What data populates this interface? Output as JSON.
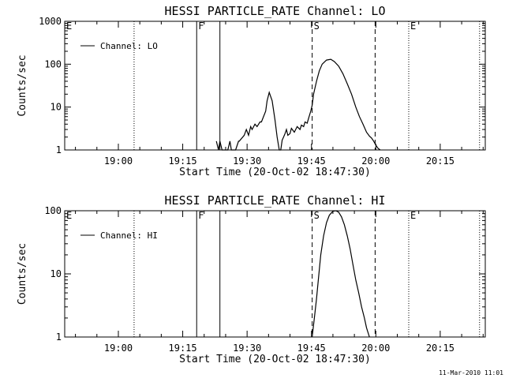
{
  "chart_data": [
    {
      "type": "line",
      "title": "HESSI PARTICLE_RATE Channel: LO",
      "xlabel": "Start Time (20-Oct-02 18:47:30)",
      "ylabel": "Counts/sec",
      "yscale": "log",
      "ylim": [
        1,
        1000
      ],
      "xlim_minutes_after_start": [
        0,
        98
      ],
      "x_tick_labels": [
        "19:00",
        "19:15",
        "19:30",
        "19:45",
        "20:00",
        "20:15"
      ],
      "y_tick_labels": [
        "1",
        "10",
        "100",
        "1000"
      ],
      "legend": "top-left",
      "markers": [
        {
          "label": "E",
          "time": "18:47:30",
          "style": "dotted"
        },
        {
          "label": "",
          "time": "19:03:40",
          "style": "dotted"
        },
        {
          "label": "F",
          "time": "19:18:15",
          "style": "solid"
        },
        {
          "label": "",
          "time": "19:23:40",
          "style": "solid"
        },
        {
          "label": "S",
          "time": "19:45:10",
          "style": "dashed"
        },
        {
          "label": "",
          "time": "19:59:50",
          "style": "dashed"
        },
        {
          "label": "E",
          "time": "20:07:40",
          "style": "dotted"
        },
        {
          "label": "",
          "time": "20:24:10",
          "style": "dotted"
        }
      ],
      "series": [
        {
          "name": "Channel: LO",
          "x": [
            "19:22:50",
            "19:23:20",
            "19:23:40",
            "19:24:10",
            "19:25:30",
            "19:26:00",
            "19:26:20",
            "19:27:20",
            "19:28:00",
            "19:28:10",
            "19:29:20",
            "19:29:50",
            "19:30:20",
            "19:30:50",
            "19:31:10",
            "19:31:50",
            "19:32:20",
            "19:33:00",
            "19:33:20",
            "19:34:20",
            "19:34:40",
            "19:35:10",
            "19:35:50",
            "19:36:30",
            "19:37:00",
            "19:37:30",
            "19:37:50",
            "19:38:10",
            "19:38:30",
            "19:38:50",
            "19:39:10",
            "19:39:30",
            "19:40:00",
            "19:40:20",
            "19:41:00",
            "19:41:40",
            "19:42:20",
            "19:42:40",
            "19:43:10",
            "19:43:30",
            "19:44:00",
            "19:44:20",
            "19:44:50",
            "19:45:10",
            "19:45:30",
            "19:46:10",
            "19:46:50",
            "19:47:30",
            "19:48:30",
            "19:49:30",
            "19:50:20",
            "19:51:20",
            "19:52:20",
            "19:53:20",
            "19:54:20",
            "19:55:20",
            "19:56:10",
            "19:57:00",
            "19:57:50",
            "19:58:30",
            "19:59:00",
            "19:59:30",
            "20:00:00",
            "20:00:30",
            "20:01:00"
          ],
          "y": [
            1.6,
            1.0,
            1.6,
            1.0,
            1.0,
            1.6,
            1.0,
            1.0,
            1.6,
            1.6,
            2.2,
            3.0,
            2.2,
            3.5,
            3.0,
            4.0,
            3.5,
            4.5,
            4.5,
            8,
            14,
            22,
            14,
            5,
            2,
            1,
            1,
            1.7,
            2,
            2.4,
            3,
            2.2,
            2.4,
            3.2,
            2.6,
            3.5,
            3.0,
            3.8,
            3.5,
            4.5,
            4.2,
            5.5,
            8,
            11,
            20,
            40,
            70,
            100,
            125,
            130,
            115,
            90,
            60,
            35,
            20,
            10,
            6,
            4,
            2.6,
            2.1,
            1.9,
            1.6,
            1.3,
            1.1,
            1.0
          ]
        }
      ]
    },
    {
      "type": "line",
      "title": "HESSI PARTICLE_RATE Channel: HI",
      "xlabel": "Start Time (20-Oct-02 18:47:30)",
      "ylabel": "Counts/sec",
      "yscale": "log",
      "ylim": [
        1,
        100
      ],
      "xlim_minutes_after_start": [
        0,
        98
      ],
      "x_tick_labels": [
        "19:00",
        "19:15",
        "19:30",
        "19:45",
        "20:00",
        "20:15"
      ],
      "y_tick_labels": [
        "1",
        "10",
        "100"
      ],
      "legend": "top-left",
      "markers": [
        {
          "label": "E",
          "time": "18:47:30",
          "style": "dotted"
        },
        {
          "label": "",
          "time": "19:03:40",
          "style": "dotted"
        },
        {
          "label": "F",
          "time": "19:18:15",
          "style": "solid"
        },
        {
          "label": "",
          "time": "19:23:40",
          "style": "solid"
        },
        {
          "label": "S",
          "time": "19:45:10",
          "style": "dashed"
        },
        {
          "label": "",
          "time": "19:59:50",
          "style": "dashed"
        },
        {
          "label": "E",
          "time": "20:07:40",
          "style": "dotted"
        },
        {
          "label": "",
          "time": "20:24:10",
          "style": "dotted"
        }
      ],
      "series": [
        {
          "name": "Channel: HI",
          "x": [
            "19:45:10",
            "19:45:40",
            "19:46:10",
            "19:46:40",
            "19:47:10",
            "19:47:50",
            "19:48:30",
            "19:49:10",
            "19:50:00",
            "19:50:40",
            "19:51:20",
            "19:52:00",
            "19:52:40",
            "19:53:20",
            "19:54:00",
            "19:54:40",
            "19:55:20",
            "19:56:00",
            "19:56:40",
            "19:57:20",
            "19:57:50",
            "19:58:30"
          ],
          "y": [
            1,
            2,
            4,
            9,
            20,
            40,
            65,
            85,
            98,
            100,
            95,
            80,
            60,
            40,
            25,
            14,
            8,
            5,
            3,
            2,
            1.4,
            1
          ]
        }
      ]
    }
  ],
  "timestamp": "11-Mar-2010 11:01"
}
